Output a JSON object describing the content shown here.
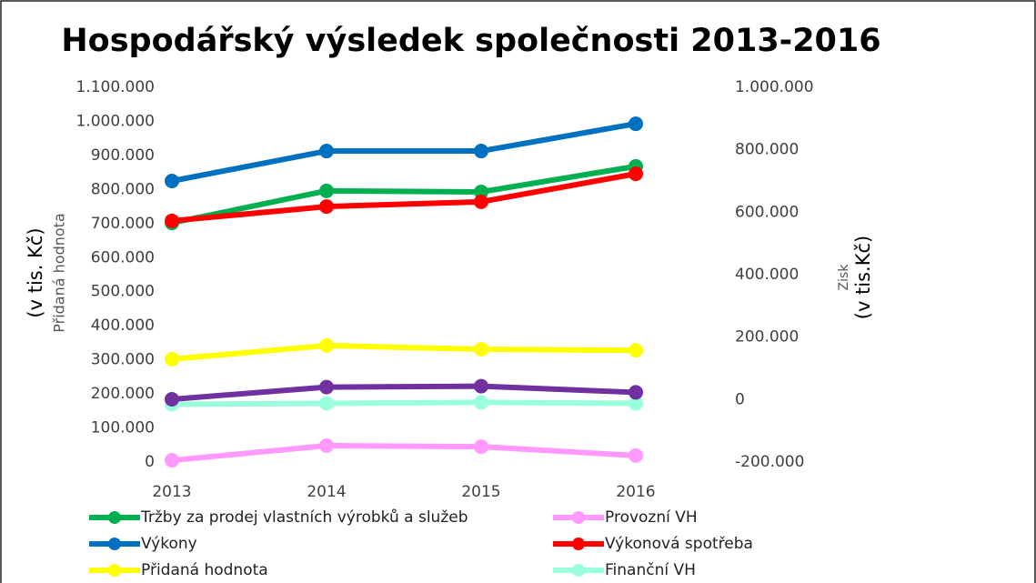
{
  "chart_data": {
    "type": "line",
    "title": "Hospodářský výsledek společnosti 2013-2016",
    "y_label": "Přidaná hodnota",
    "y_unit": "(v tis. Kč)",
    "y2_label": "Zisk",
    "y2_unit": "(v tis.Kč)",
    "categories": [
      "2013",
      "2014",
      "2015",
      "2016"
    ],
    "ylim": [
      0,
      1100000
    ],
    "yticks": [
      0,
      {
        "value": 100000,
        "label": "100.000"
      },
      {
        "value": 200000,
        "label": "200.000"
      },
      {
        "value": 300000,
        "label": "300.000"
      },
      {
        "value": 400000,
        "label": "400.000"
      },
      {
        "value": 500000,
        "label": "500.000"
      },
      {
        "value": 600000,
        "label": "600.000"
      },
      {
        "value": 700000,
        "label": "700.000"
      },
      {
        "value": 800000,
        "label": "800.000"
      },
      {
        "value": 900000,
        "label": "900.000"
      },
      {
        "value": 1000000,
        "label": "1.000.000"
      },
      {
        "value": 1100000,
        "label": "1.100.000"
      }
    ],
    "y2lim": [
      -200000,
      1000000
    ],
    "y2ticks": [
      {
        "value": -200000,
        "label": "-200.000"
      },
      0,
      {
        "value": 200000,
        "label": "200.000"
      },
      {
        "value": 400000,
        "label": "400.000"
      },
      {
        "value": 600000,
        "label": "600.000"
      },
      {
        "value": 800000,
        "label": "800.000"
      },
      {
        "value": 1000000,
        "label": "1.000.000"
      }
    ],
    "series": [
      {
        "name": "Tržby za prodej vlastních výrobků a služeb",
        "color": "#00b050",
        "values": [
          702000,
          796000,
          793000,
          868000
        ]
      },
      {
        "name": "Provozní VH",
        "color": "#ff99ff",
        "values": [
          5000,
          48000,
          45000,
          19000
        ]
      },
      {
        "name": "Výkony",
        "color": "#0070c0",
        "values": [
          825000,
          913000,
          913000,
          993000
        ]
      },
      {
        "name": "Výkonová spotřeba",
        "color": "#ff0000",
        "values": [
          708000,
          750000,
          764000,
          846000
        ]
      },
      {
        "name": "Přidaná hodnota",
        "color": "#ffff00",
        "values": [
          302000,
          342000,
          331000,
          328000
        ]
      },
      {
        "name": "Finanční VH",
        "color": "#99ffdd",
        "axis": "y2",
        "values": [
          -15000,
          -12000,
          -9000,
          -12000
        ]
      },
      {
        "color": "#7030a0",
        "axis": "y2",
        "values": [
          1000,
          40000,
          43000,
          23000
        ]
      }
    ]
  }
}
